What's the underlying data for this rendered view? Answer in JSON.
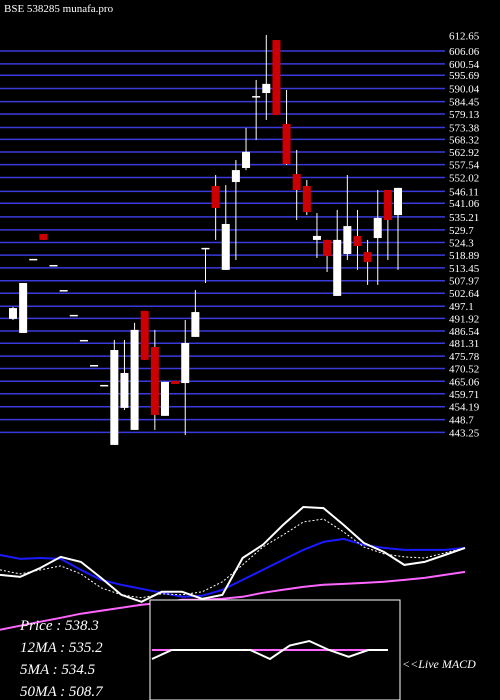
{
  "chart_data": [
    {
      "type": "candlestick",
      "title": "BSE 538285 munafa.pro",
      "open": [
        491.7,
        485.7,
        517.3,
        527.9,
        514.7,
        504.0,
        493.4,
        482.7,
        472.0,
        463.5,
        437.9,
        453.7,
        444.3,
        495.1,
        479.7,
        450.3,
        465.2,
        464.3,
        484.0,
        522.0,
        548.4,
        512.6,
        550.1,
        556.1,
        586.8,
        588.1,
        610.7,
        574.9,
        553.5,
        548.4,
        525.4,
        525.4,
        501.5,
        519.4,
        527.1,
        520.2,
        526.2,
        546.7,
        536.0
      ],
      "high": [
        496.8,
        507.0,
        517.3,
        527.9,
        514.7,
        504.0,
        493.4,
        482.7,
        472.0,
        463.5,
        482.7,
        482.7,
        490.0,
        495.1,
        487.0,
        464.8,
        465.2,
        491.2,
        504.0,
        522.0,
        553.1,
        548.8,
        559.5,
        573.2,
        593.7,
        612.9,
        610.7,
        589.4,
        563.8,
        551.0,
        536.9,
        525.4,
        538.2,
        553.1,
        538.2,
        525.4,
        546.7,
        546.7,
        547.6
      ],
      "low": [
        491.2,
        485.7,
        517.3,
        525.4,
        514.7,
        504.0,
        493.4,
        482.7,
        472.0,
        463.5,
        437.9,
        452.8,
        444.3,
        474.2,
        444.3,
        450.3,
        463.9,
        442.1,
        484.0,
        507.0,
        525.4,
        512.6,
        516.8,
        555.2,
        568.1,
        576.6,
        578.7,
        557.4,
        533.9,
        536.0,
        517.7,
        511.7,
        501.5,
        516.8,
        512.6,
        506.2,
        506.2,
        516.8,
        512.6
      ],
      "close": [
        496.3,
        507.0,
        517.3,
        525.4,
        514.7,
        504.0,
        493.4,
        482.7,
        472.0,
        463.5,
        478.4,
        468.6,
        487.0,
        474.2,
        450.7,
        464.8,
        463.9,
        481.4,
        494.6,
        522.0,
        539.0,
        532.2,
        555.2,
        563.0,
        586.8,
        592.0,
        578.7,
        557.8,
        546.7,
        537.3,
        527.1,
        518.5,
        525.4,
        531.3,
        522.8,
        516.0,
        534.8,
        533.9,
        547.6
      ],
      "up_color": "#ffffff",
      "down_color": "#cc0000",
      "ylim": [
        435,
        615
      ],
      "yticks": [
        612.65,
        606.06,
        600.54,
        595.69,
        590.04,
        584.45,
        579.13,
        573.38,
        568.32,
        562.92,
        557.54,
        552.02,
        546.11,
        541.06,
        535.21,
        529.7,
        524.3,
        518.89,
        513.45,
        507.97,
        502.64,
        497.1,
        491.92,
        486.54,
        481.31,
        475.78,
        470.52,
        465.06,
        459.71,
        454.19,
        448.7,
        443.25
      ],
      "grid": true,
      "grid_color": "#3a3adc"
    },
    {
      "type": "line",
      "ylim": [
        390,
        632
      ],
      "series": [
        {
          "color": "#ff66ff",
          "values": [
            458.0,
            461.9,
            465.8,
            469.6,
            473.5,
            476.4,
            479.3,
            482.2,
            484.1,
            487.0,
            487.0,
            488.0,
            489.9,
            493.8,
            496.7,
            499.5,
            501.5,
            502.4,
            503.4,
            504.4,
            506.3,
            508.2,
            511.1,
            514.0
          ]
        },
        {
          "color": "#1a1aff",
          "values": [
            530.4,
            526.6,
            527.5,
            526.6,
            515.9,
            506.3,
            501.5,
            497.6,
            493.8,
            489.9,
            490.9,
            496.7,
            506.3,
            515.9,
            525.6,
            535.3,
            543.0,
            545.9,
            540.1,
            537.2,
            535.3,
            535.3,
            535.3,
            537.2
          ]
        },
        {
          "color": "#ffffff",
          "dashed": true,
          "values": [
            515.9,
            512.1,
            515.9,
            519.8,
            512.1,
            498.6,
            491.8,
            488.9,
            492.8,
            491.8,
            494.7,
            504.4,
            520.8,
            538.1,
            549.7,
            562.3,
            565.2,
            552.6,
            538.1,
            531.4,
            528.5,
            527.5,
            532.4,
            537.2
          ]
        },
        {
          "color": "#ffffff",
          "values": [
            511.1,
            509.2,
            517.9,
            528.5,
            523.7,
            508.2,
            491.8,
            485.1,
            494.7,
            494.7,
            488.0,
            491.8,
            527.5,
            540.1,
            559.4,
            576.8,
            575.8,
            559.4,
            542.0,
            533.3,
            520.8,
            523.7,
            530.4,
            537.2
          ]
        }
      ]
    },
    {
      "type": "line",
      "title": "<<Live MACD",
      "ylim": [
        -1,
        1
      ],
      "series": [
        {
          "color": "#ff66ff",
          "values": [
            0,
            0,
            0,
            0,
            0,
            0,
            0,
            0,
            0,
            0,
            0,
            0,
            0
          ]
        },
        {
          "color": "#ffffff",
          "values": [
            -0.2,
            0,
            0,
            0,
            0,
            0,
            -0.2,
            0.1,
            0.2,
            0,
            -0.15,
            0,
            0
          ]
        }
      ]
    }
  ],
  "stats": [
    "Price : 538.3",
    "12MA : 535.2",
    "5MA : 534.5",
    "50MA : 508.7"
  ]
}
